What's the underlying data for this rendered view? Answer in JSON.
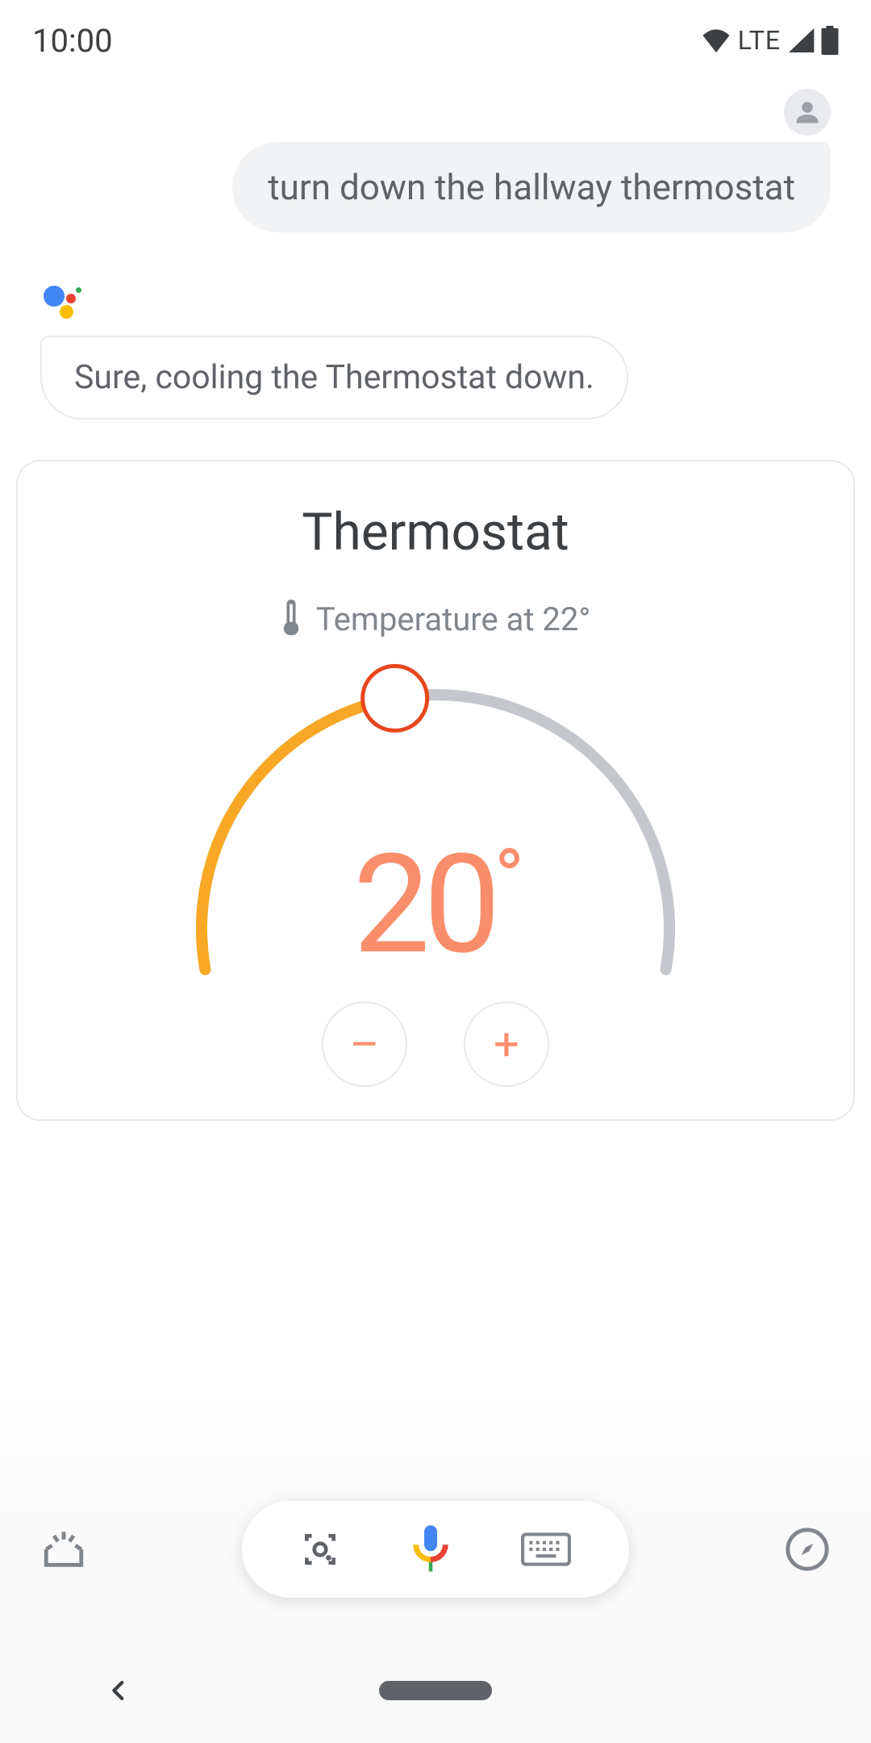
{
  "status": {
    "time": "10:00",
    "network": "LTE"
  },
  "chat": {
    "user_text": "turn down the hallway thermostat",
    "assistant_text": "Sure, cooling the Thermostat down."
  },
  "thermostat": {
    "title": "Thermostat",
    "current_label": "Temperature at 22°",
    "set_temp": "20",
    "degree": "°",
    "dial": {
      "track_color": "#c4c7cc",
      "fill_color": "#f9a825",
      "handle_stroke": "#e8461c",
      "handle_fill": "#ffffff",
      "angle_start": 190,
      "angle_end": -10,
      "angle_value": 100,
      "radius": 290,
      "stroke_width": 14,
      "handle_radius": 40
    },
    "minus": "–",
    "plus": "+",
    "temp_value_color": "#fa8e6c"
  },
  "colors": {
    "text_primary": "#3c4043",
    "text_secondary": "#5f6368",
    "text_muted": "#80868b",
    "border": "#e8eaed",
    "bubble_user": "#f1f3f4"
  }
}
